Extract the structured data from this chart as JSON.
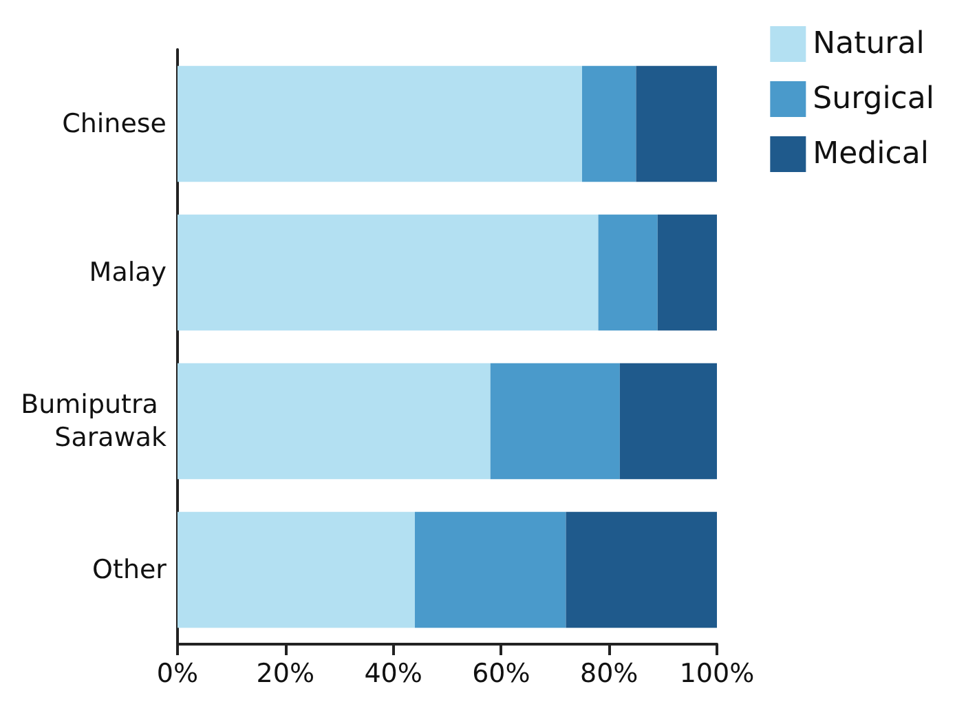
{
  "chart_data": {
    "type": "bar",
    "orientation": "horizontal",
    "stacked": true,
    "categories": [
      "Chinese",
      "Malay",
      "Bumiputra Sarawak",
      "Other"
    ],
    "series": [
      {
        "name": "Natural",
        "color": "#b3e0f2",
        "values": [
          75,
          78,
          58,
          44
        ]
      },
      {
        "name": "Surgical",
        "color": "#4a9acb",
        "values": [
          10,
          11,
          24,
          28
        ]
      },
      {
        "name": "Medical",
        "color": "#1f5a8c",
        "values": [
          15,
          11,
          18,
          28
        ]
      }
    ],
    "xlim": [
      0,
      100
    ],
    "xticks": [
      {
        "value": 0,
        "label": "0%"
      },
      {
        "value": 20,
        "label": "20%"
      },
      {
        "value": 40,
        "label": "40%"
      },
      {
        "value": 60,
        "label": "60%"
      },
      {
        "value": 80,
        "label": "80%"
      },
      {
        "value": 100,
        "label": "100%"
      }
    ],
    "grid": false,
    "legend": "top right"
  }
}
